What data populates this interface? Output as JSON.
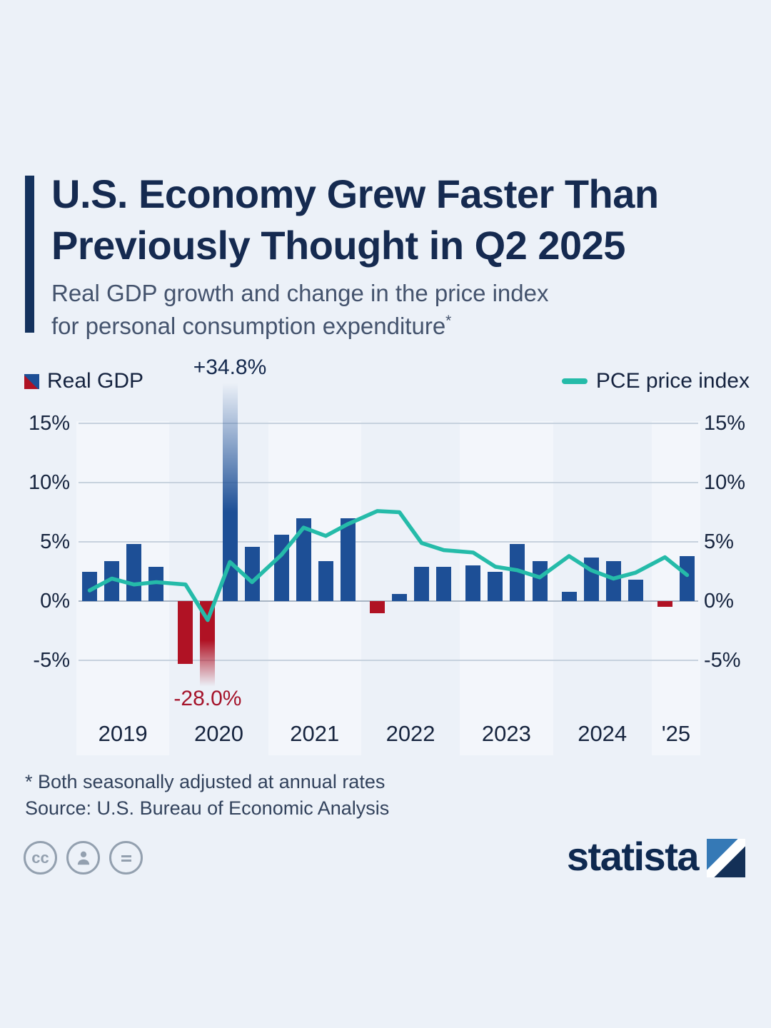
{
  "header": {
    "title_line1": "U.S. Economy Grew Faster Than",
    "title_line2": "Previously Thought in Q2 2025",
    "subtitle_line1": "Real GDP growth and change in the price index",
    "subtitle_line2": "for personal consumption expenditure",
    "footnote_marker": "*"
  },
  "legend": {
    "gdp": "Real GDP",
    "pce": "PCE price index"
  },
  "chart_data": {
    "type": "bar+line",
    "categories_years": [
      "2019",
      "2020",
      "2021",
      "2022",
      "2023",
      "2024",
      "'25"
    ],
    "quarters_per_year": [
      4,
      4,
      4,
      4,
      4,
      4,
      2
    ],
    "y_ticks": [
      "15%",
      "10%",
      "5%",
      "0%",
      "-5%"
    ],
    "y_tick_values": [
      15,
      10,
      5,
      0,
      -5
    ],
    "ylim_display": [
      -7.5,
      17
    ],
    "clip_above": 16,
    "clip_below": -6.5,
    "grid_color": "#c7d2de",
    "zero_line_color": "#a8b5c4",
    "series": [
      {
        "name": "Real GDP",
        "type": "bar",
        "color_positive": "#1d4f96",
        "color_negative": "#b01224",
        "values": [
          2.5,
          3.4,
          4.8,
          2.9,
          -5.3,
          -28.0,
          34.8,
          4.6,
          5.6,
          7.0,
          3.4,
          7.0,
          -1.0,
          0.6,
          2.9,
          2.9,
          3.0,
          2.5,
          4.8,
          3.4,
          0.8,
          3.7,
          3.4,
          1.8,
          -0.5,
          3.8
        ]
      },
      {
        "name": "PCE price index",
        "type": "line",
        "color": "#25bba9",
        "values": [
          0.9,
          1.9,
          1.4,
          1.6,
          1.4,
          -1.6,
          3.3,
          1.6,
          3.9,
          6.2,
          5.5,
          6.5,
          7.6,
          7.5,
          4.9,
          4.3,
          4.1,
          2.9,
          2.6,
          2.0,
          3.8,
          2.6,
          1.9,
          2.4,
          3.7,
          2.2
        ]
      }
    ],
    "annotations": [
      {
        "text": "+34.8%",
        "bar_index": 6,
        "color": "#15294d"
      },
      {
        "text": "-28.0%",
        "bar_index": 5,
        "color": "#a5142b"
      }
    ]
  },
  "footer": {
    "footnote": "* Both seasonally adjusted at annual rates",
    "source": "Source: U.S. Bureau of Economic Analysis",
    "brand": "statista"
  },
  "license": {
    "cc": "cc"
  }
}
